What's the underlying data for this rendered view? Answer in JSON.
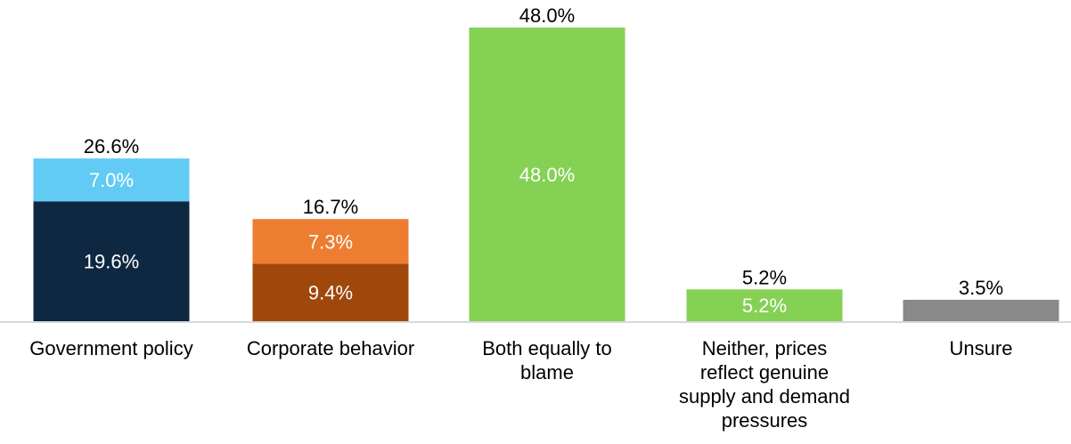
{
  "chart_data": {
    "type": "bar",
    "stacked": true,
    "categories": [
      "Government policy",
      "Corporate behavior",
      "Both equally to blame",
      "Neither, prices reflect genuine supply and demand pressures",
      "Unsure"
    ],
    "category_lines": [
      [
        "Government policy"
      ],
      [
        "Corporate behavior"
      ],
      [
        "Both equally to",
        "blame"
      ],
      [
        "Neither, prices",
        "reflect genuine",
        "supply and demand",
        "pressures"
      ],
      [
        "Unsure"
      ]
    ],
    "bars": [
      {
        "total": 26.6,
        "total_label": "26.6%",
        "segments": [
          {
            "value": 19.6,
            "label": "19.6%",
            "color": "#0E2841"
          },
          {
            "value": 7.0,
            "label": "7.0%",
            "color": "#61CBF4"
          }
        ]
      },
      {
        "total": 16.7,
        "total_label": "16.7%",
        "segments": [
          {
            "value": 9.4,
            "label": "9.4%",
            "color": "#A0470C"
          },
          {
            "value": 7.3,
            "label": "7.3%",
            "color": "#ED7D31"
          }
        ]
      },
      {
        "total": 48.0,
        "total_label": "48.0%",
        "segments": [
          {
            "value": 48.0,
            "label": "48.0%",
            "color": "#84D154"
          }
        ]
      },
      {
        "total": 5.2,
        "total_label": "5.2%",
        "segments": [
          {
            "value": 5.2,
            "label": "5.2%",
            "color": "#84D154"
          }
        ]
      },
      {
        "total": 3.5,
        "total_label": "3.5%",
        "segments": [
          {
            "value": 3.5,
            "label": "",
            "color": "#898989"
          }
        ]
      }
    ],
    "ylim": [
      0,
      48
    ],
    "grid": false,
    "legend": "none",
    "axis_color": "#D9D9D9",
    "label_color": "#FFFFFF",
    "total_color": "#000000"
  }
}
